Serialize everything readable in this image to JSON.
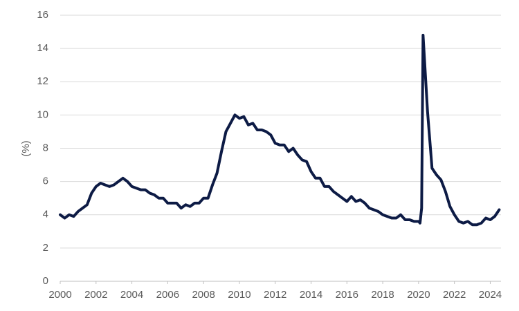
{
  "chart_data": {
    "type": "line",
    "y_label": "(%)",
    "x": [
      2000,
      2000.25,
      2000.5,
      2000.75,
      2001,
      2001.25,
      2001.5,
      2001.75,
      2002,
      2002.25,
      2002.5,
      2002.75,
      2003,
      2003.25,
      2003.5,
      2003.75,
      2004,
      2004.25,
      2004.5,
      2004.75,
      2005,
      2005.25,
      2005.5,
      2005.75,
      2006,
      2006.25,
      2006.5,
      2006.75,
      2007,
      2007.25,
      2007.5,
      2007.75,
      2008,
      2008.25,
      2008.5,
      2008.75,
      2009,
      2009.25,
      2009.5,
      2009.75,
      2010,
      2010.25,
      2010.5,
      2010.75,
      2011,
      2011.25,
      2011.5,
      2011.75,
      2012,
      2012.25,
      2012.5,
      2012.75,
      2013,
      2013.25,
      2013.5,
      2013.75,
      2014,
      2014.25,
      2014.5,
      2014.75,
      2015,
      2015.25,
      2015.5,
      2015.75,
      2016,
      2016.25,
      2016.5,
      2016.75,
      2017,
      2017.25,
      2017.5,
      2017.75,
      2018,
      2018.25,
      2018.5,
      2018.75,
      2019,
      2019.25,
      2019.5,
      2019.75,
      2020,
      2020.08,
      2020.17,
      2020.25,
      2020.5,
      2020.75,
      2021,
      2021.25,
      2021.5,
      2021.75,
      2022,
      2022.25,
      2022.5,
      2022.75,
      2023,
      2023.25,
      2023.5,
      2023.75,
      2024,
      2024.25,
      2024.5
    ],
    "values": [
      4.0,
      3.8,
      4.0,
      3.9,
      4.2,
      4.4,
      4.6,
      5.3,
      5.7,
      5.9,
      5.8,
      5.7,
      5.8,
      6.0,
      6.2,
      6.0,
      5.7,
      5.6,
      5.5,
      5.5,
      5.3,
      5.2,
      5.0,
      5.0,
      4.7,
      4.7,
      4.7,
      4.4,
      4.6,
      4.5,
      4.7,
      4.7,
      5.0,
      5.0,
      5.8,
      6.5,
      7.8,
      9.0,
      9.5,
      10.0,
      9.8,
      9.9,
      9.4,
      9.5,
      9.1,
      9.1,
      9.0,
      8.8,
      8.3,
      8.2,
      8.2,
      7.8,
      8.0,
      7.6,
      7.3,
      7.2,
      6.6,
      6.2,
      6.2,
      5.7,
      5.7,
      5.4,
      5.2,
      5.0,
      4.8,
      5.1,
      4.8,
      4.9,
      4.7,
      4.4,
      4.3,
      4.2,
      4.0,
      3.9,
      3.8,
      3.8,
      4.0,
      3.7,
      3.7,
      3.6,
      3.6,
      3.5,
      4.4,
      14.8,
      10.2,
      6.8,
      6.4,
      6.1,
      5.4,
      4.5,
      4.0,
      3.6,
      3.5,
      3.6,
      3.4,
      3.4,
      3.5,
      3.8,
      3.7,
      3.9,
      4.3
    ],
    "color": "#0d1b45",
    "xlim": [
      2000,
      2024.6
    ],
    "xticks": [
      2000,
      2002,
      2004,
      2006,
      2008,
      2010,
      2012,
      2014,
      2016,
      2018,
      2020,
      2022,
      2024
    ],
    "ylim": [
      0,
      16
    ],
    "yticks": [
      0,
      2,
      4,
      6,
      8,
      10,
      12,
      14,
      16
    ],
    "grid": true
  }
}
